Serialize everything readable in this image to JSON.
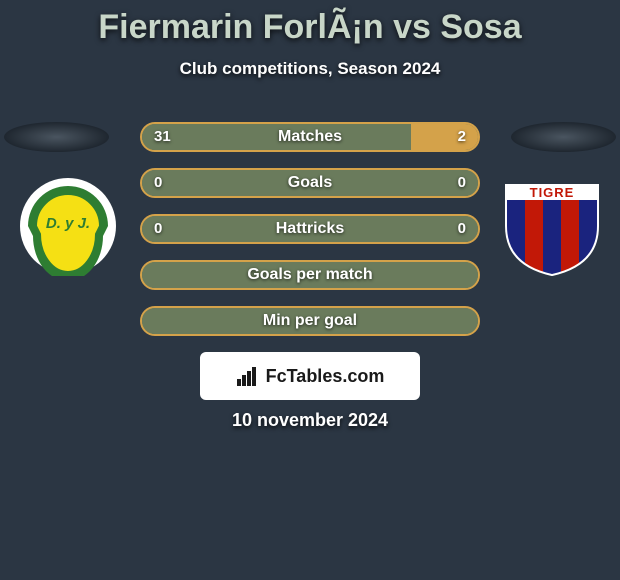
{
  "title": "Fiermarin ForlÃ¡n vs Sosa",
  "subtitle": "Club competitions, Season 2024",
  "date": "10 november 2024",
  "fctables_label": "FcTables.com",
  "colors": {
    "background": "#2b3643",
    "text_primary": "#ffffff",
    "title_text": "#c8d6c8",
    "pill_border": "#d4a24a",
    "pill_bg_empty": "#5a6b52",
    "pill_fill_left": "#6a7b5c",
    "pill_fill_right": "#d4a24a",
    "logo_box_bg": "#ffffff",
    "logo_box_text": "#1a1a1a"
  },
  "club_left": {
    "name": "Defensa y Justicia",
    "primary": "#f5e014",
    "secondary": "#2e7d32",
    "text": "D. y J."
  },
  "club_right": {
    "name": "Tigre",
    "primary": "#c21807",
    "secondary": "#1a237e",
    "text": "TIGRE"
  },
  "stats": [
    {
      "label": "Matches",
      "left_val": "31",
      "right_val": "2",
      "left_pct": 80,
      "right_pct": 20,
      "show_vals": true
    },
    {
      "label": "Goals",
      "left_val": "0",
      "right_val": "0",
      "left_pct": 50,
      "right_pct": 50,
      "show_vals": true
    },
    {
      "label": "Hattricks",
      "left_val": "0",
      "right_val": "0",
      "left_pct": 50,
      "right_pct": 50,
      "show_vals": true
    },
    {
      "label": "Goals per match",
      "left_val": "",
      "right_val": "",
      "left_pct": 50,
      "right_pct": 50,
      "show_vals": false
    },
    {
      "label": "Min per goal",
      "left_val": "",
      "right_val": "",
      "left_pct": 50,
      "right_pct": 50,
      "show_vals": false
    }
  ]
}
